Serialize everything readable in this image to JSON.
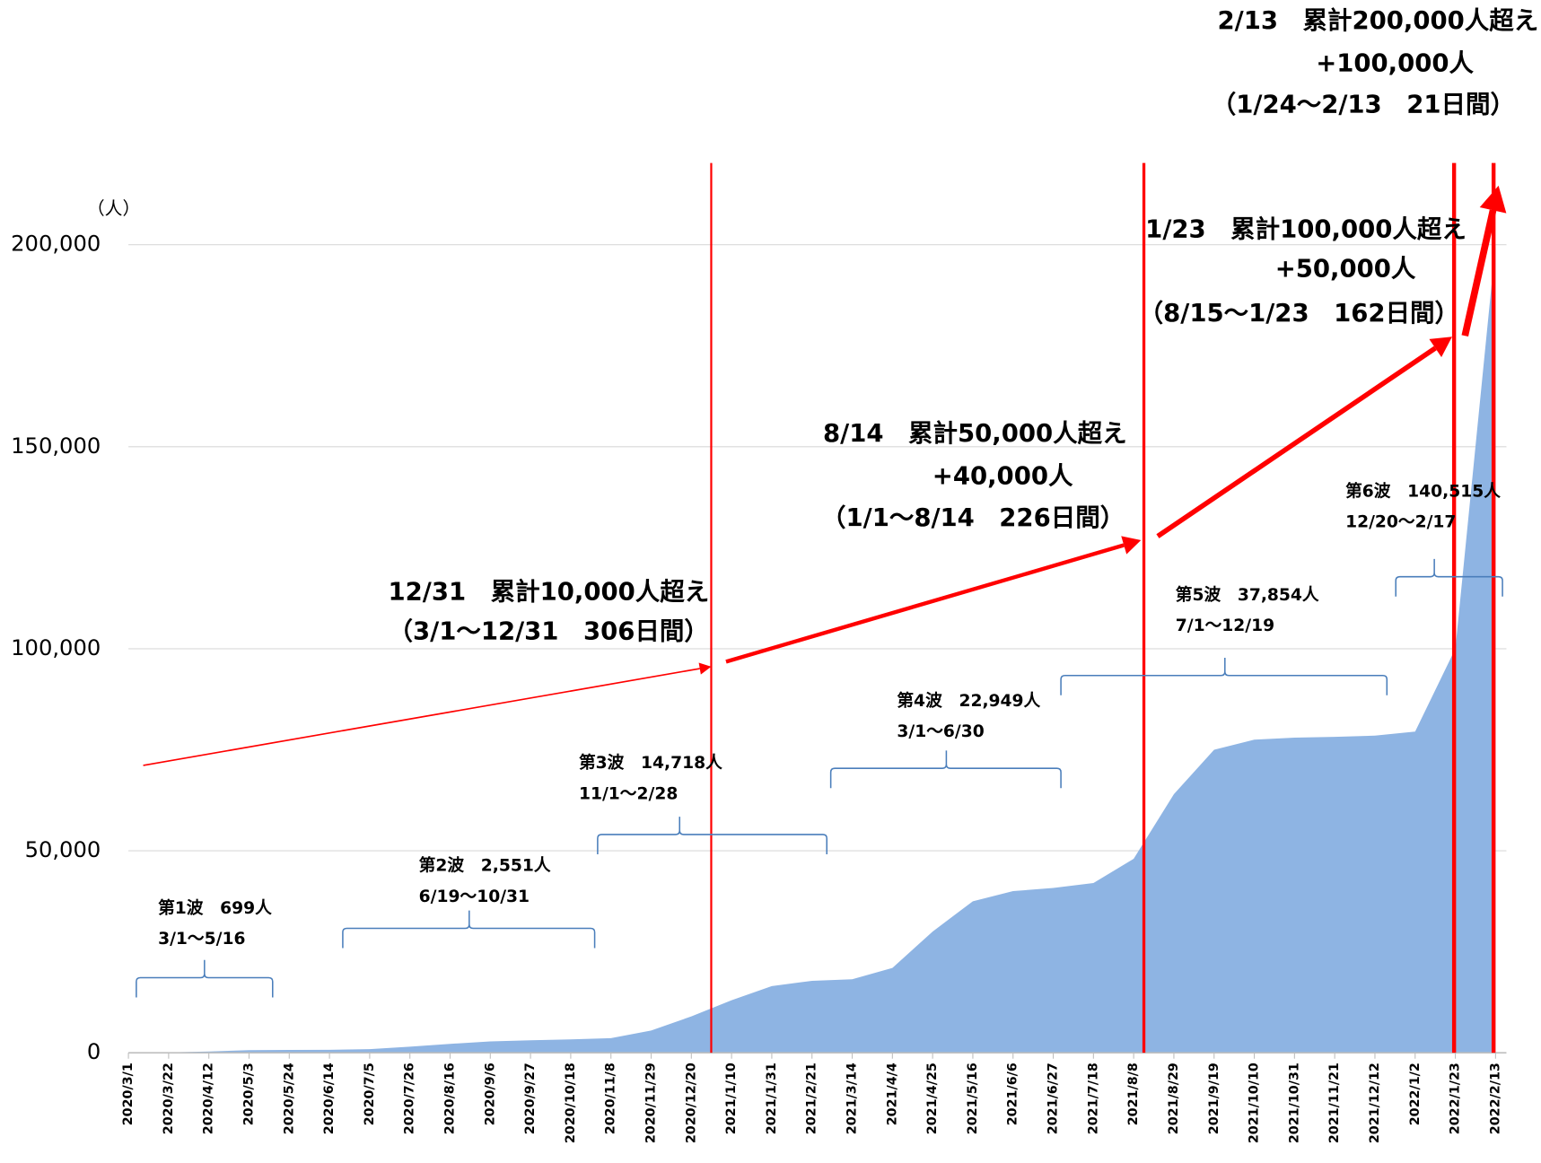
{
  "chart_data": {
    "type": "area",
    "y_unit": "（人）",
    "color": "#8eb4e3",
    "ylim": [
      0,
      220000
    ],
    "yticks": [
      {
        "value": 0,
        "label": "0"
      },
      {
        "value": 50000,
        "label": "50,000"
      },
      {
        "value": 100000,
        "label": "100,000"
      },
      {
        "value": 150000,
        "label": "150,000"
      },
      {
        "value": 200000,
        "label": "200,000"
      }
    ],
    "grid": true,
    "categories": [
      "2020/3/1",
      "2020/3/22",
      "2020/4/12",
      "2020/5/3",
      "2020/5/24",
      "2020/6/14",
      "2020/7/5",
      "2020/7/26",
      "2020/8/16",
      "2020/9/6",
      "2020/9/27",
      "2020/10/18",
      "2020/11/8",
      "2020/11/29",
      "2020/12/20",
      "2021/1/10",
      "2021/1/31",
      "2021/2/21",
      "2021/3/14",
      "2021/4/4",
      "2021/4/25",
      "2021/5/16",
      "2021/6/6",
      "2021/6/27",
      "2021/7/18",
      "2021/8/8",
      "2021/8/29",
      "2021/9/19",
      "2021/10/10",
      "2021/10/31",
      "2021/11/21",
      "2021/12/12",
      "2022/1/2",
      "2022/1/23",
      "2022/2/13"
    ],
    "values": [
      0,
      100,
      300,
      650,
      700,
      720,
      900,
      1500,
      2200,
      2800,
      3100,
      3300,
      3600,
      5500,
      9000,
      13000,
      16500,
      17800,
      18200,
      21000,
      30000,
      37500,
      40000,
      40800,
      42000,
      48000,
      64000,
      75000,
      77500,
      78000,
      78200,
      78500,
      79500,
      100000,
      200000
    ],
    "annotations": [
      {
        "lines": [
          "12/31　累計10,000人超え",
          "（3/1〜12/31　306日間）"
        ]
      },
      {
        "lines": [
          "8/14　累計50,000人超え",
          "+40,000人",
          "（1/1〜8/14　226日間）"
        ]
      },
      {
        "lines": [
          "1/23　累計100,000人超え",
          "+50,000人",
          "（8/15〜1/23　162日間）"
        ]
      },
      {
        "lines": [
          "2/13　累計200,000人超え",
          "+100,000人",
          "（1/24〜2/13　21日間）"
        ]
      }
    ],
    "waves": [
      {
        "lines": [
          "第1波　699人",
          "3/1〜5/16"
        ]
      },
      {
        "lines": [
          "第2波　2,551人",
          "6/19〜10/31"
        ]
      },
      {
        "lines": [
          "第3波　14,718人",
          "11/1〜2/28"
        ]
      },
      {
        "lines": [
          "第4波　22,949人",
          "3/1〜6/30"
        ]
      },
      {
        "lines": [
          "第5波　37,854人",
          "7/1〜12/19"
        ]
      },
      {
        "lines": [
          "第6波　140,515人",
          "12/20〜2/17"
        ]
      }
    ]
  }
}
